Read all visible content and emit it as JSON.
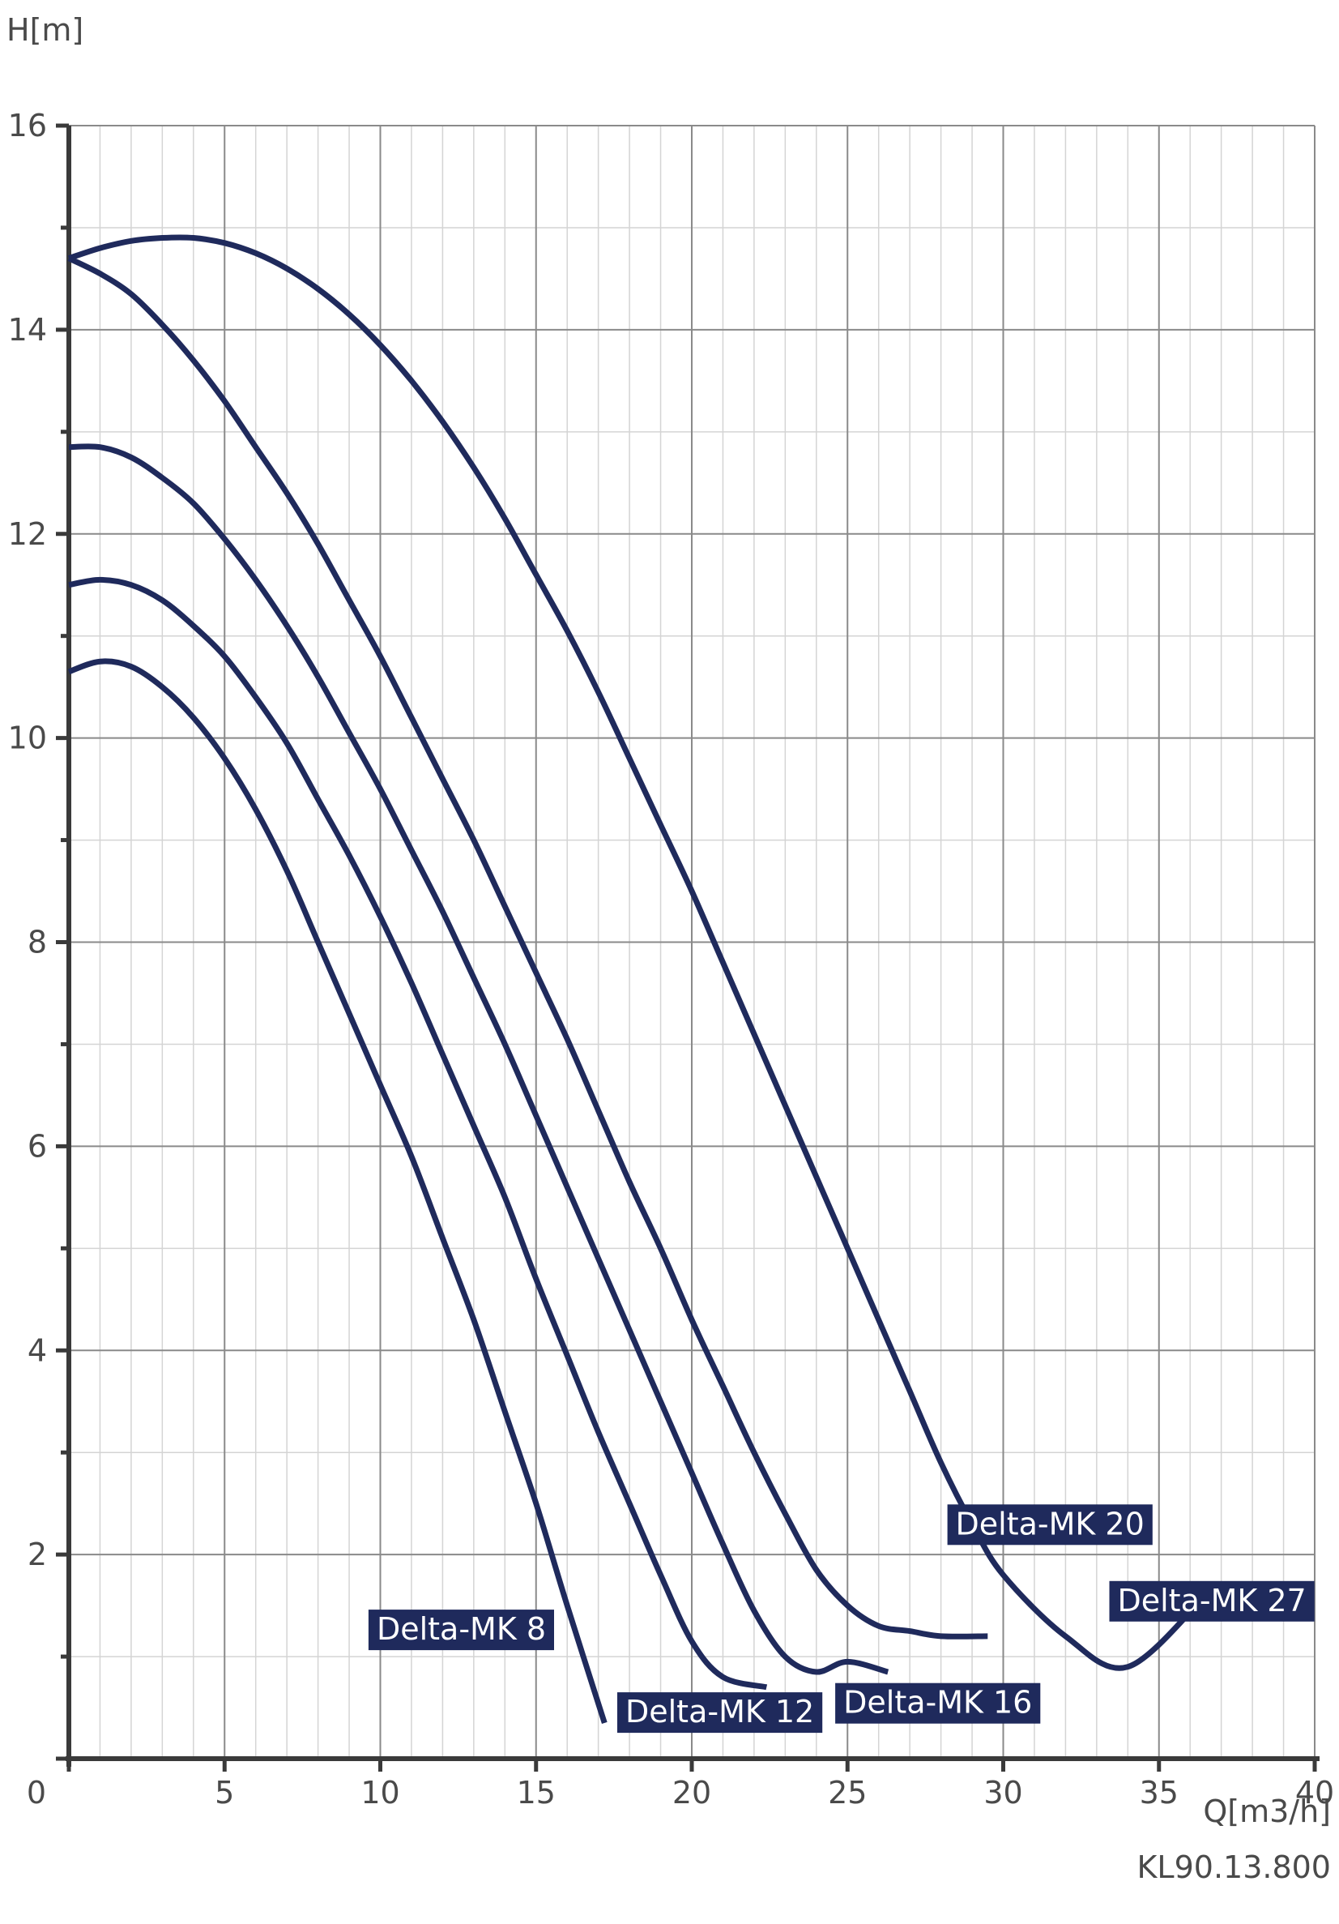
{
  "chart_data": {
    "type": "line",
    "ylabel": "H[m]",
    "xlabel": "Q[m3/h]",
    "reference": "KL90.13.800",
    "xlim": [
      0,
      40
    ],
    "ylim": [
      0,
      16
    ],
    "x_ticks": [
      "0",
      "5",
      "10",
      "15",
      "20",
      "25",
      "30",
      "35",
      "40"
    ],
    "y_ticks": [
      "2",
      "4",
      "6",
      "8",
      "10",
      "12",
      "14",
      "16"
    ],
    "grid": true,
    "line_color": "#1f2a5c",
    "series": [
      {
        "name": "Delta-MK 8",
        "points": [
          [
            0,
            10.65
          ],
          [
            1,
            10.75
          ],
          [
            2,
            10.7
          ],
          [
            3,
            10.5
          ],
          [
            4,
            10.2
          ],
          [
            5,
            9.8
          ],
          [
            6,
            9.3
          ],
          [
            7,
            8.7
          ],
          [
            8,
            8.0
          ],
          [
            9,
            7.3
          ],
          [
            10,
            6.6
          ],
          [
            11,
            5.9
          ],
          [
            12,
            5.1
          ],
          [
            13,
            4.3
          ],
          [
            14,
            3.4
          ],
          [
            15,
            2.5
          ],
          [
            16,
            1.5
          ],
          [
            17.2,
            0.35
          ]
        ],
        "label": {
          "text": "Delta-MK 8",
          "x": 12.6,
          "y": 1.27
        }
      },
      {
        "name": "Delta-MK 12",
        "points": [
          [
            0,
            11.5
          ],
          [
            1,
            11.55
          ],
          [
            2,
            11.5
          ],
          [
            3,
            11.35
          ],
          [
            4,
            11.1
          ],
          [
            5,
            10.8
          ],
          [
            6,
            10.4
          ],
          [
            7,
            9.95
          ],
          [
            8,
            9.4
          ],
          [
            9,
            8.85
          ],
          [
            10,
            8.25
          ],
          [
            11,
            7.6
          ],
          [
            12,
            6.9
          ],
          [
            13,
            6.2
          ],
          [
            14,
            5.5
          ],
          [
            15,
            4.7
          ],
          [
            16,
            3.95
          ],
          [
            17,
            3.2
          ],
          [
            18,
            2.5
          ],
          [
            19,
            1.8
          ],
          [
            20,
            1.15
          ],
          [
            21,
            0.8
          ],
          [
            22.4,
            0.7
          ]
        ],
        "label": {
          "text": "Delta-MK 12",
          "x": 20.9,
          "y": 0.46
        }
      },
      {
        "name": "Delta-MK 16",
        "points": [
          [
            0,
            12.85
          ],
          [
            1,
            12.85
          ],
          [
            2,
            12.75
          ],
          [
            3,
            12.55
          ],
          [
            4,
            12.3
          ],
          [
            5,
            11.95
          ],
          [
            6,
            11.55
          ],
          [
            7,
            11.1
          ],
          [
            8,
            10.6
          ],
          [
            9,
            10.05
          ],
          [
            10,
            9.5
          ],
          [
            11,
            8.9
          ],
          [
            12,
            8.3
          ],
          [
            13,
            7.65
          ],
          [
            14,
            7.0
          ],
          [
            15,
            6.3
          ],
          [
            16,
            5.6
          ],
          [
            17,
            4.9
          ],
          [
            18,
            4.2
          ],
          [
            19,
            3.5
          ],
          [
            20,
            2.8
          ],
          [
            21,
            2.1
          ],
          [
            22,
            1.45
          ],
          [
            23,
            1.0
          ],
          [
            24,
            0.85
          ],
          [
            25,
            0.95
          ],
          [
            26.3,
            0.85
          ]
        ],
        "label": {
          "text": "Delta-MK 16",
          "x": 27.9,
          "y": 0.55
        }
      },
      {
        "name": "Delta-MK 20",
        "points": [
          [
            0,
            14.7
          ],
          [
            1,
            14.55
          ],
          [
            2,
            14.35
          ],
          [
            3,
            14.05
          ],
          [
            4,
            13.7
          ],
          [
            5,
            13.3
          ],
          [
            6,
            12.85
          ],
          [
            7,
            12.4
          ],
          [
            8,
            11.9
          ],
          [
            9,
            11.35
          ],
          [
            10,
            10.8
          ],
          [
            11,
            10.2
          ],
          [
            12,
            9.6
          ],
          [
            13,
            9.0
          ],
          [
            14,
            8.35
          ],
          [
            15,
            7.7
          ],
          [
            16,
            7.05
          ],
          [
            17,
            6.35
          ],
          [
            18,
            5.65
          ],
          [
            19,
            5.0
          ],
          [
            20,
            4.3
          ],
          [
            21,
            3.65
          ],
          [
            22,
            3.0
          ],
          [
            23,
            2.4
          ],
          [
            24,
            1.85
          ],
          [
            25,
            1.5
          ],
          [
            26,
            1.3
          ],
          [
            27,
            1.25
          ],
          [
            28,
            1.2
          ],
          [
            29.5,
            1.2
          ]
        ],
        "label": {
          "text": "Delta-MK 20",
          "x": 31.5,
          "y": 2.3
        }
      },
      {
        "name": "Delta-MK 27",
        "points": [
          [
            0,
            14.7
          ],
          [
            1,
            14.8
          ],
          [
            2,
            14.87
          ],
          [
            3,
            14.9
          ],
          [
            4,
            14.9
          ],
          [
            5,
            14.85
          ],
          [
            6,
            14.75
          ],
          [
            7,
            14.6
          ],
          [
            8,
            14.4
          ],
          [
            9,
            14.15
          ],
          [
            10,
            13.85
          ],
          [
            11,
            13.5
          ],
          [
            12,
            13.1
          ],
          [
            13,
            12.65
          ],
          [
            14,
            12.15
          ],
          [
            15,
            11.6
          ],
          [
            16,
            11.05
          ],
          [
            17,
            10.45
          ],
          [
            18,
            9.8
          ],
          [
            19,
            9.15
          ],
          [
            20,
            8.5
          ],
          [
            21,
            7.8
          ],
          [
            22,
            7.1
          ],
          [
            23,
            6.4
          ],
          [
            24,
            5.7
          ],
          [
            25,
            5.0
          ],
          [
            26,
            4.3
          ],
          [
            27,
            3.6
          ],
          [
            28,
            2.9
          ],
          [
            29,
            2.3
          ],
          [
            30,
            1.8
          ],
          [
            32,
            1.2
          ],
          [
            34,
            0.9
          ],
          [
            36.5,
            1.6
          ]
        ],
        "label": {
          "text": "Delta-MK 27",
          "x": 36.7,
          "y": 1.55
        }
      }
    ]
  }
}
